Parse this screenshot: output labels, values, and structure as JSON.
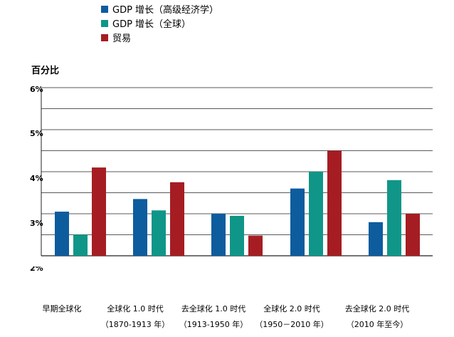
{
  "chart_data": {
    "type": "bar",
    "ylabel": "百分比",
    "ylim": [
      2,
      6
    ],
    "yticks": [
      "2%",
      "3%",
      "4%",
      "5%",
      "6%"
    ],
    "gridlines": [
      2,
      2.5,
      3,
      3.5,
      4,
      4.5,
      5,
      5.5,
      6
    ],
    "categories": [
      {
        "line1": "早期全球化",
        "line2": ""
      },
      {
        "line1": "全球化 1.0 时代",
        "line2": "（1870-1913 年）"
      },
      {
        "line1": "去全球化 1.0 时代",
        "line2": "（1913-1950 年）"
      },
      {
        "line1": "全球化 2.0 时代",
        "line2": "（1950－2010 年）"
      },
      {
        "line1": "去全球化 2.0 时代",
        "line2": "（2010 年至今）"
      }
    ],
    "series": [
      {
        "name": "GDP 增长（高级经济学）",
        "color": "#0d5c9e",
        "values": [
          3.05,
          3.35,
          3.0,
          3.6,
          2.8
        ]
      },
      {
        "name": "GDP 增长（全球）",
        "color": "#0f9688",
        "values": [
          2.5,
          3.08,
          2.95,
          4.0,
          3.8
        ]
      },
      {
        "name": "贸易",
        "color": "#a51d22",
        "values": [
          4.1,
          3.75,
          2.48,
          4.5,
          3.0
        ]
      }
    ]
  }
}
